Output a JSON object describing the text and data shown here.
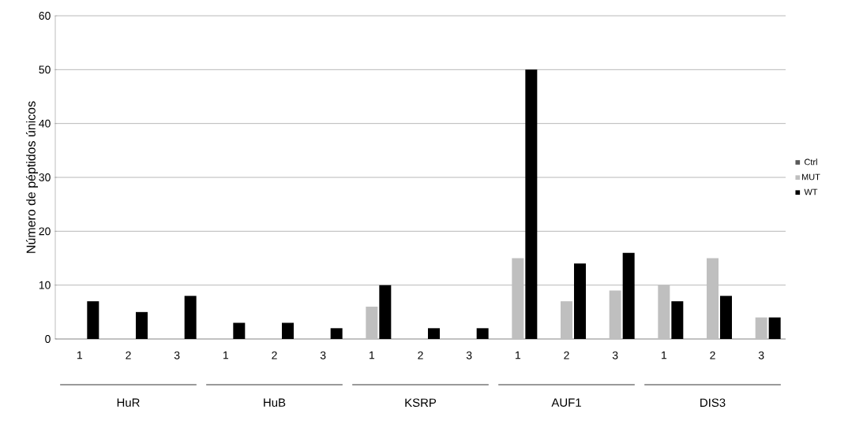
{
  "chart_data": {
    "type": "bar",
    "ylabel": "Número de péptidos únicos",
    "categories": [
      "1",
      "2",
      "3",
      "1",
      "2",
      "3",
      "1",
      "2",
      "3",
      "1",
      "2",
      "3",
      "1",
      "2",
      "3"
    ],
    "series": [
      {
        "name": "Ctrl",
        "color": "#595959",
        "values": [
          0,
          0,
          0,
          0,
          0,
          0,
          0,
          0,
          0,
          0,
          0,
          0,
          0,
          0,
          0
        ]
      },
      {
        "name": "MUT",
        "color": "#bfbfbf",
        "values": [
          0,
          0,
          0,
          0,
          0,
          0,
          6,
          0,
          0,
          15,
          7,
          9,
          10,
          15,
          4
        ]
      },
      {
        "name": "WT",
        "color": "#000000",
        "values": [
          7,
          5,
          8,
          3,
          3,
          2,
          10,
          2,
          2,
          50,
          14,
          16,
          7,
          8,
          4
        ]
      }
    ],
    "annotations": [
      "HuR",
      "HuB",
      "KSRP",
      "AUF1",
      "DIS3"
    ],
    "ylim": [
      0,
      60
    ],
    "yticks": [
      0,
      10,
      20,
      30,
      40,
      50,
      60
    ],
    "grid": "y",
    "legend": "right"
  }
}
